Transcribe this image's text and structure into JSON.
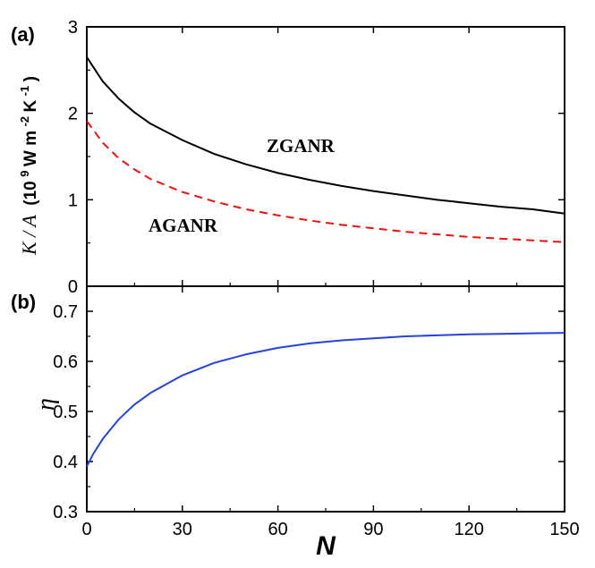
{
  "chart_data": [
    {
      "panel": "(a)",
      "type": "line",
      "xlabel": "N",
      "ylabel": "K / A",
      "ylabel_unit": "(10^9 W m^-2 K^-1)",
      "xlim": [
        0,
        150
      ],
      "ylim": [
        0,
        3
      ],
      "xticks": [
        0,
        30,
        60,
        90,
        120,
        150
      ],
      "yticks": [
        0,
        1,
        2,
        3
      ],
      "x": [
        0,
        5,
        10,
        15,
        20,
        30,
        40,
        50,
        60,
        70,
        80,
        90,
        100,
        110,
        120,
        130,
        140,
        150
      ],
      "series": [
        {
          "name": "ZGANR",
          "color": "#000000",
          "style": "solid",
          "values": [
            2.65,
            2.37,
            2.17,
            2.01,
            1.88,
            1.69,
            1.53,
            1.41,
            1.31,
            1.23,
            1.16,
            1.1,
            1.05,
            1.0,
            0.96,
            0.92,
            0.89,
            0.84
          ]
        },
        {
          "name": "AGANR",
          "color": "#ee1111",
          "style": "dashed",
          "values": [
            1.91,
            1.66,
            1.48,
            1.35,
            1.24,
            1.09,
            0.98,
            0.89,
            0.82,
            0.76,
            0.71,
            0.67,
            0.63,
            0.6,
            0.57,
            0.55,
            0.53,
            0.51
          ]
        }
      ]
    },
    {
      "panel": "(b)",
      "type": "line",
      "xlabel": "N",
      "ylabel": "η",
      "xlim": [
        0,
        150
      ],
      "ylim": [
        0.3,
        0.75
      ],
      "xticks": [
        0,
        30,
        60,
        90,
        120,
        150
      ],
      "yticks": [
        0.3,
        0.4,
        0.5,
        0.6,
        0.7
      ],
      "x": [
        0,
        2,
        5,
        10,
        15,
        20,
        30,
        40,
        50,
        60,
        70,
        80,
        90,
        100,
        110,
        120,
        130,
        140,
        150
      ],
      "series": [
        {
          "name": "η",
          "color": "#2244dd",
          "style": "solid",
          "values": [
            0.39,
            0.415,
            0.445,
            0.484,
            0.514,
            0.537,
            0.572,
            0.597,
            0.614,
            0.627,
            0.636,
            0.642,
            0.646,
            0.65,
            0.652,
            0.654,
            0.655,
            0.656,
            0.657
          ]
        }
      ]
    }
  ],
  "labels": {
    "panel_a": "(a)",
    "panel_b": "(b)",
    "x_title": "N",
    "ya_main": "K / A",
    "ya_unit": "(10",
    "ya_unit_sup1": "9",
    "ya_unit_mid1": " W m",
    "ya_unit_sup2": "-2",
    "ya_unit_mid2": " K",
    "ya_unit_sup3": "-1",
    "ya_unit_end": " )",
    "yb_main": "η",
    "zganr": "ZGANR",
    "aganr": "AGANR"
  }
}
